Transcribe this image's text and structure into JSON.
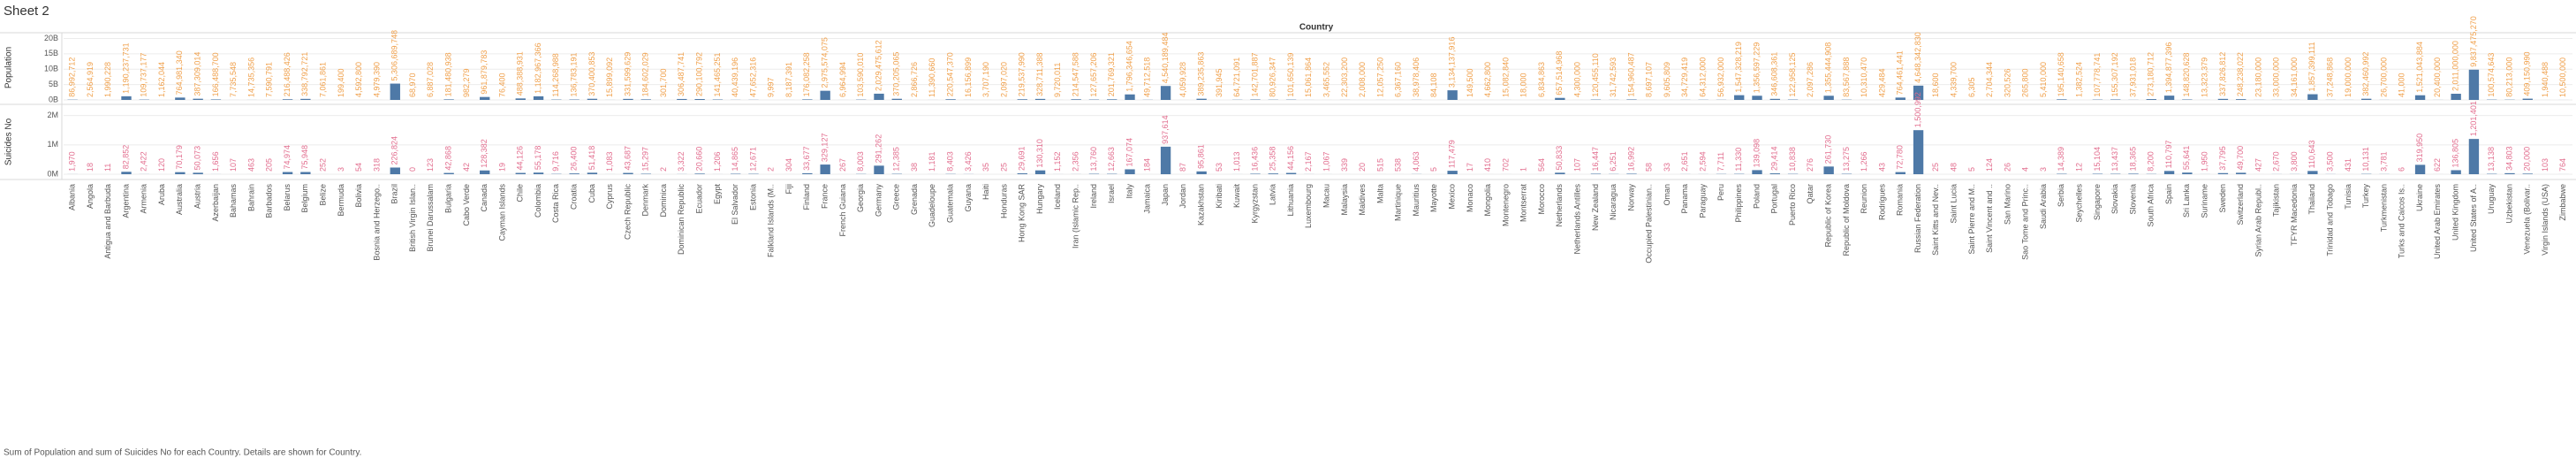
{
  "chart_data": {
    "type": "bar",
    "title": "Sheet 2",
    "x_label": "Country",
    "caption": "Sum of Population and sum of Suicides No for each Country.  Details are shown for Country.",
    "grid": true,
    "categories": [
      "Albania",
      "Angola",
      "Antigua and Barbuda",
      "Argentina",
      "Armenia",
      "Aruba",
      "Australia",
      "Austria",
      "Azerbaijan",
      "Bahamas",
      "Bahrain",
      "Barbados",
      "Belarus",
      "Belgium",
      "Belize",
      "Bermuda",
      "Bolivia",
      "Bosnia and Herzego..",
      "Brazil",
      "British Virgin Islan..",
      "Brunei Darussalam",
      "Bulgaria",
      "Cabo Verde",
      "Canada",
      "Cayman Islands",
      "Chile",
      "Colombia",
      "Costa Rica",
      "Croatia",
      "Cuba",
      "Cyprus",
      "Czech Republic",
      "Denmark",
      "Dominica",
      "Dominican Republic",
      "Ecuador",
      "Egypt",
      "El Salvador",
      "Estonia",
      "Falkland Islands (M..",
      "Fiji",
      "Finland",
      "France",
      "French Guiana",
      "Georgia",
      "Germany",
      "Greece",
      "Grenada",
      "Guadeloupe",
      "Guatemala",
      "Guyana",
      "Haiti",
      "Honduras",
      "Hong Kong SAR",
      "Hungary",
      "Iceland",
      "Iran (Islamic Rep..",
      "Ireland",
      "Israel",
      "Italy",
      "Jamaica",
      "Japan",
      "Jordan",
      "Kazakhstan",
      "Kiribati",
      "Kuwait",
      "Kyrgyzstan",
      "Latvia",
      "Lithuania",
      "Luxembourg",
      "Macau",
      "Malaysia",
      "Maldives",
      "Malta",
      "Martinique",
      "Mauritius",
      "Mayotte",
      "Mexico",
      "Monaco",
      "Mongolia",
      "Montenegro",
      "Montserrat",
      "Morocco",
      "Netherlands",
      "Netherlands Antilles",
      "New Zealand",
      "Nicaragua",
      "Norway",
      "Occupied Palestinian..",
      "Oman",
      "Panama",
      "Paraguay",
      "Peru",
      "Philippines",
      "Poland",
      "Portugal",
      "Puerto Rico",
      "Qatar",
      "Republic of Korea",
      "Republic of Moldova",
      "Reunion",
      "Rodrigues",
      "Romania",
      "Russian Federation",
      "Saint Kitts and Nev..",
      "Saint Lucia",
      "Saint Pierre and M..",
      "Saint Vincent and ..",
      "San Marino",
      "Sao Tome and Princ..",
      "Saudi Arabia",
      "Serbia",
      "Seychelles",
      "Singapore",
      "Slovakia",
      "Slovenia",
      "South Africa",
      "Spain",
      "Sri Lanka",
      "Suriname",
      "Sweden",
      "Switzerland",
      "Syrian Arab Republ..",
      "Tajikistan",
      "TFYR Macedonia",
      "Thailand",
      "Trinidad and Tobago",
      "Tunisia",
      "Turkey",
      "Turkmenistan",
      "Turks and Caicos Is..",
      "Ukraine",
      "United Arab Emirates",
      "United Kingdom",
      "United States of A..",
      "Uruguay",
      "Uzbekistan",
      "Venezuela (Bolivar..",
      "Virgin Islands (USA)",
      "Zimbabwe"
    ],
    "ylim": [
      0,
      21000000000
    ],
    "yticks": [
      {
        "value": 0,
        "label": "0B"
      },
      {
        "value": 5000000000,
        "label": "5B"
      },
      {
        "value": 10000000000,
        "label": "10B"
      },
      {
        "value": 15000000000,
        "label": "15B"
      },
      {
        "value": 20000000000,
        "label": "20B"
      }
    ],
    "y2lim": [
      0,
      2200000
    ],
    "y2ticks": [
      {
        "value": 0,
        "label": "0M"
      },
      {
        "value": 1000000,
        "label": "1M"
      },
      {
        "value": 2000000,
        "label": "2M"
      }
    ],
    "series": [
      {
        "name": "Population",
        "color": "#4e79a7",
        "label_color": "#f0a04b",
        "axis": "y",
        "values": [
          86992712,
          2564919,
          1990228,
          1190237731,
          109737177,
          1162044,
          764981340,
          387309014,
          166488700,
          7735548,
          14735356,
          7590791,
          216488426,
          338792721,
          7061861,
          199400,
          4592800,
          4979390,
          5306689748,
          68970,
          6887028,
          181480938,
          982279,
          961879783,
          76400,
          488388931,
          1182967366,
          114268988,
          136783191,
          370400853,
          15899092,
          331599629,
          184602029,
          301700,
          306487741,
          290100792,
          141465251,
          40439196,
          47652316,
          9997,
          8187391,
          176082258,
          2975574075,
          6964994,
          103590010,
          2029475612,
          370205065,
          2866726,
          11390660,
          220547370,
          16156899,
          3707190,
          2097020,
          219537990,
          328711388,
          9720011,
          214547588,
          127657206,
          201769321,
          1796346654,
          49712518,
          4540189484,
          4059928,
          389235863,
          391945,
          64721091,
          142701887,
          80926347,
          101650139,
          15061864,
          3465552,
          22303200,
          2008000,
          12057250,
          6367160,
          38978406,
          84108,
          3134137916,
          149500,
          4662800,
          15082840,
          18000,
          6834863,
          657514968,
          4300000,
          120455110,
          31742593,
          154960487,
          8697107,
          9605809,
          34729419,
          64312000,
          56932000,
          1547328219,
          1356597229,
          346608361,
          122958125,
          2097286,
          1355444908,
          83567888,
          10310470,
          429484,
          764461441,
          4648342830,
          18600,
          4339700,
          6305,
          2704344,
          320526,
          265800,
          5410000,
          195140658,
          1382524,
          107778741,
          155307192,
          37931018,
          273180712,
          1394877396,
          148820628,
          13323379,
          337826812,
          248238022,
          23180000,
          33000000,
          34161000,
          1857399111,
          37248868,
          19000000,
          382460992,
          26700000,
          41000,
          1521043884,
          20400000,
          2011000000,
          9837475270,
          100574643,
          80213000,
          409150990,
          1940488,
          10500000
        ],
        "value_labels": [
          "86,992,712",
          "2,564,919",
          "1,990,228",
          "1,190,237,731",
          "109,737,177",
          "1,162,044",
          "764,981,340",
          "387,309,014",
          "166,488,700",
          "7,735,548",
          "14,735,356",
          "7,590,791",
          "216,488,426",
          "338,792,721",
          "7,061,861",
          "199,400",
          "4,592,800",
          "4,979,390",
          "5,306,689,748",
          "68,970",
          "6,887,028",
          "181,480,938",
          "982,279",
          "961,879,783",
          "76,400",
          "488,388,931",
          "1,182,967,366",
          "114,268,988",
          "136,783,191",
          "370,400,853",
          "15,899,092",
          "331,599,629",
          "184,602,029",
          "301,700",
          "306,487,741",
          "290,100,792",
          "141,465,251",
          "40,439,196",
          "47,652,316",
          "9,997",
          "8,187,391",
          "176,082,258",
          "2,975,574,075",
          "6,964,994",
          "103,590,010",
          "2,029,475,612",
          "370,205,065",
          "2,866,726",
          "11,390,660",
          "220,547,370",
          "16,156,899",
          "3,707,190",
          "2,097,020",
          "219,537,990",
          "328,711,388",
          "9,720,011",
          "214,547,588",
          "127,657,206",
          "201,769,321",
          "1,796,346,654",
          "49,712,518",
          "4,540,189,484",
          "4,059,928",
          "389,235,863",
          "391,945",
          "64,721,091",
          "142,701,887",
          "80,926,347",
          "101,650,139",
          "15,061,864",
          "3,465,552",
          "22,303,200",
          "2,008,000",
          "12,057,250",
          "6,367,160",
          "38,978,406",
          "84,108",
          "3,134,137,916",
          "149,500",
          "4,662,800",
          "15,082,840",
          "18,000",
          "6,834,863",
          "657,514,968",
          "4,300,000",
          "120,455,110",
          "31,742,593",
          "154,960,487",
          "8,697,107",
          "9,605,809",
          "34,729,419",
          "64,312,000",
          "56,932,000",
          "1,547,328,219",
          "1,356,597,229",
          "346,608,361",
          "122,958,125",
          "2,097,286",
          "1,355,444,908",
          "83,567,888",
          "10,310,470",
          "429,484",
          "764,461,441",
          "4,648,342,830",
          "18,600",
          "4,339,700",
          "6,305",
          "2,704,344",
          "320,526",
          "265,800",
          "5,410,000",
          "195,140,658",
          "1,382,524",
          "107,778,741",
          "155,307,192",
          "37,931,018",
          "273,180,712",
          "1,394,877,396",
          "148,820,628",
          "13,323,379",
          "337,826,812",
          "248,238,022",
          "23,180,000",
          "33,000,000",
          "34,161,000",
          "1,857,399,111",
          "37,248,868",
          "19,000,000",
          "382,460,992",
          "26,700,000",
          "41,000",
          "1,521,043,884",
          "20,400,000",
          "2,011,000,000",
          "9,837,475,270",
          "100,574,643",
          "80,213,000",
          "409,150,990",
          "1,940,488",
          "10,500,000"
        ]
      },
      {
        "name": "Suicides No",
        "color": "#4e79a7",
        "label_color": "#e26d8e",
        "axis": "y2",
        "values": [
          1970,
          18,
          11,
          82852,
          2422,
          120,
          70179,
          50073,
          1656,
          107,
          463,
          205,
          74974,
          75948,
          252,
          3,
          54,
          318,
          226824,
          0,
          123,
          42868,
          42,
          128382,
          19,
          44126,
          55178,
          9716,
          26400,
          51418,
          1083,
          43687,
          15297,
          2,
          3322,
          20660,
          1206,
          14865,
          12671,
          2,
          304,
          33677,
          329127,
          267,
          8003,
          291262,
          12385,
          38,
          1181,
          8403,
          3426,
          35,
          25,
          29691,
          130310,
          1152,
          2356,
          13760,
          12663,
          167074,
          184,
          937614,
          87,
          95861,
          53,
          1013,
          16436,
          25358,
          44156,
          2167,
          1067,
          339,
          20,
          515,
          538,
          4063,
          5,
          117479,
          17,
          410,
          702,
          1,
          564,
          50833,
          107,
          16447,
          6251,
          16992,
          58,
          33,
          2651,
          2594,
          7711,
          11330,
          139098,
          29414,
          10838,
          276,
          261730,
          13275,
          1266,
          43,
          72780,
          1500992,
          25,
          48,
          5,
          124,
          26,
          4,
          3,
          14389,
          12,
          15104,
          13437,
          18365,
          8200,
          110797,
          55641,
          1950,
          37795,
          49700,
          427,
          2670,
          3800,
          110643,
          3500,
          431,
          10131,
          3781,
          6,
          319950,
          622,
          136805,
          1201401,
          13138,
          34803,
          20000,
          103,
          764
        ],
        "value_labels": [
          "1,970",
          "18",
          "11",
          "82,852",
          "2,422",
          "120",
          "70,179",
          "50,073",
          "1,656",
          "107",
          "463",
          "205",
          "74,974",
          "75,948",
          "252",
          "3",
          "54",
          "318",
          "226,824",
          "0",
          "123",
          "42,868",
          "42",
          "128,382",
          "19",
          "44,126",
          "55,178",
          "9,716",
          "26,400",
          "51,418",
          "1,083",
          "43,687",
          "15,297",
          "2",
          "3,322",
          "20,660",
          "1,206",
          "14,865",
          "12,671",
          "2",
          "304",
          "33,677",
          "329,127",
          "267",
          "8,003",
          "291,262",
          "12,385",
          "38",
          "1,181",
          "8,403",
          "3,426",
          "35",
          "25",
          "29,691",
          "130,310",
          "1,152",
          "2,356",
          "13,760",
          "12,663",
          "167,074",
          "184",
          "937,614",
          "87",
          "95,861",
          "53",
          "1,013",
          "16,436",
          "25,358",
          "44,156",
          "2,167",
          "1,067",
          "339",
          "20",
          "515",
          "538",
          "4,063",
          "5",
          "117,479",
          "17",
          "410",
          "702",
          "1",
          "564",
          "50,833",
          "107",
          "16,447",
          "6,251",
          "16,992",
          "58",
          "33",
          "2,651",
          "2,594",
          "7,711",
          "11,330",
          "139,098",
          "29,414",
          "10,838",
          "276",
          "261,730",
          "13,275",
          "1,266",
          "43",
          "72,780",
          "1,500,992",
          "25",
          "48",
          "5",
          "124",
          "26",
          "4",
          "3",
          "14,389",
          "12",
          "15,104",
          "13,437",
          "18,365",
          "8,200",
          "110,797",
          "55,641",
          "1,950",
          "37,795",
          "49,700",
          "427",
          "2,670",
          "3,800",
          "110,643",
          "3,500",
          "431",
          "10,131",
          "3,781",
          "6",
          "319,950",
          "622",
          "136,805",
          "1,201,401",
          "13,138",
          "34,803",
          "20,000",
          "103",
          "764"
        ]
      }
    ]
  }
}
